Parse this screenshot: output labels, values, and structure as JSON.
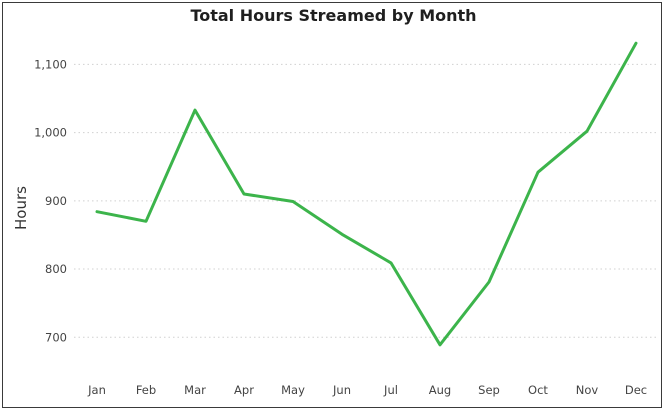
{
  "chart_data": {
    "type": "line",
    "title": "Total Hours Streamed by Month",
    "xlabel": "",
    "ylabel": "Hours",
    "categories": [
      "Jan",
      "Feb",
      "Mar",
      "Apr",
      "May",
      "Jun",
      "Jul",
      "Aug",
      "Sep",
      "Oct",
      "Nov",
      "Dec"
    ],
    "series": [
      {
        "values": [
          884,
          870,
          1033,
          910,
          899,
          851,
          809,
          689,
          781,
          942,
          1002,
          1131
        ]
      }
    ],
    "yticks": [
      700,
      800,
      900,
      1000,
      1100
    ],
    "ytick_labels": [
      "700",
      "800",
      "900",
      "1,000",
      "1,100"
    ],
    "ylim": [
      655,
      1165
    ],
    "grid": true,
    "line_color": "#3cb44b",
    "grid_color": "#d0d0d0"
  }
}
